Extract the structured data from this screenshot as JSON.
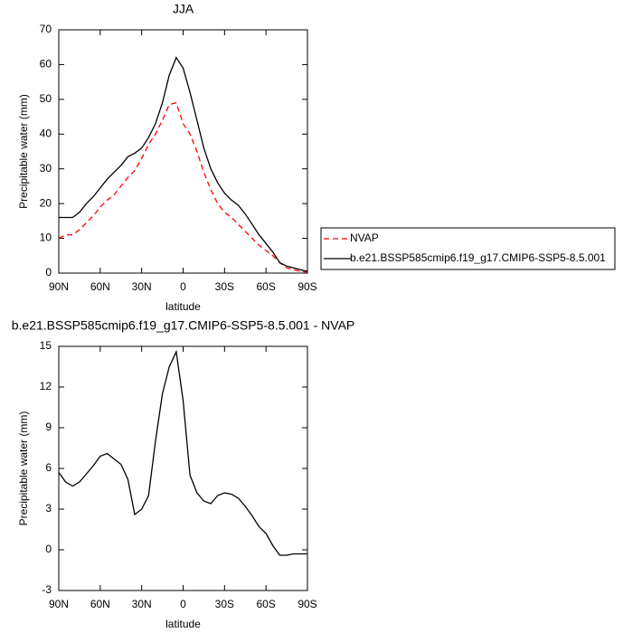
{
  "chart_data": [
    {
      "type": "line",
      "title": "JJA",
      "x_label": "latitude",
      "y_label": "Precipitable water (mm)",
      "x": [
        90,
        85,
        80,
        75,
        70,
        65,
        60,
        55,
        50,
        45,
        40,
        35,
        30,
        25,
        20,
        15,
        10,
        5,
        0,
        -5,
        -10,
        -15,
        -20,
        -25,
        -30,
        -35,
        -40,
        -45,
        -50,
        -55,
        -60,
        -65,
        -70,
        -75,
        -80,
        -85,
        -90
      ],
      "series": [
        {
          "name": "NVAP",
          "color": "#ff0000",
          "line_style": "dashed",
          "values": [
            10,
            11,
            11,
            12.5,
            14.5,
            16.5,
            19,
            21,
            22.5,
            25,
            27.5,
            29.5,
            33,
            37,
            40,
            44,
            48.5,
            49,
            43,
            40,
            35,
            29,
            24,
            20,
            17.5,
            16,
            14,
            12,
            10,
            8,
            6.5,
            5,
            3,
            1.5,
            1,
            0.5,
            0.3
          ]
        },
        {
          "name": "b.e21.BSSP585cmip6.f19_g17.CMIP6-SSP5-8.5.001",
          "color": "#000000",
          "line_style": "solid",
          "values": [
            16,
            16,
            16,
            17.5,
            20,
            22,
            24.5,
            27,
            29,
            31,
            33.5,
            34.5,
            36,
            39,
            43,
            49,
            57,
            62,
            59,
            52,
            44,
            36,
            30,
            26,
            23,
            21,
            19.5,
            17,
            14,
            11,
            8.5,
            6,
            3,
            2,
            1.5,
            1,
            0.5
          ]
        }
      ],
      "xlim": [
        90,
        -90
      ],
      "xticks": [
        {
          "value": 90,
          "label": "90N"
        },
        {
          "value": 60,
          "label": "60N"
        },
        {
          "value": 30,
          "label": "30N"
        },
        0,
        {
          "value": -30,
          "label": "30S"
        },
        {
          "value": -60,
          "label": "60S"
        },
        {
          "value": -90,
          "label": "90S"
        }
      ],
      "ylim": [
        0,
        70
      ],
      "yticks": [
        0,
        10,
        20,
        30,
        40,
        50,
        60,
        70
      ],
      "legend": "right"
    },
    {
      "type": "line",
      "title": "b.e21.BSSP585cmip6.f19_g17.CMIP6-SSP5-8.5.001 - NVAP",
      "x_label": "latitude",
      "y_label": "Precipitable water (mm)",
      "x": [
        90,
        85,
        80,
        75,
        70,
        65,
        60,
        55,
        50,
        45,
        40,
        35,
        30,
        25,
        20,
        15,
        10,
        5,
        0,
        -5,
        -10,
        -15,
        -20,
        -25,
        -30,
        -35,
        -40,
        -45,
        -50,
        -55,
        -60,
        -65,
        -70,
        -75,
        -80,
        -85,
        -90
      ],
      "color": "#000000",
      "values": [
        5.7,
        5.0,
        4.7,
        5.0,
        5.6,
        6.2,
        6.9,
        7.1,
        6.7,
        6.3,
        5.2,
        2.6,
        3.0,
        4.0,
        8.0,
        11.5,
        13.5,
        14.6,
        11,
        5.5,
        4.2,
        3.6,
        3.4,
        4.0,
        4.2,
        4.1,
        3.8,
        3.2,
        2.5,
        1.7,
        1.2,
        0.3,
        -0.4,
        -0.4,
        -0.3,
        -0.3,
        -0.3
      ],
      "xlim": [
        90,
        -90
      ],
      "xticks": [
        {
          "value": 90,
          "label": "90N"
        },
        {
          "value": 60,
          "label": "60N"
        },
        {
          "value": 30,
          "label": "30N"
        },
        0,
        {
          "value": -30,
          "label": "30S"
        },
        {
          "value": -60,
          "label": "60S"
        },
        {
          "value": -90,
          "label": "90S"
        }
      ],
      "ylim": [
        -3,
        15
      ],
      "yticks": [
        -3,
        0,
        3,
        6,
        9,
        12,
        15
      ]
    }
  ]
}
